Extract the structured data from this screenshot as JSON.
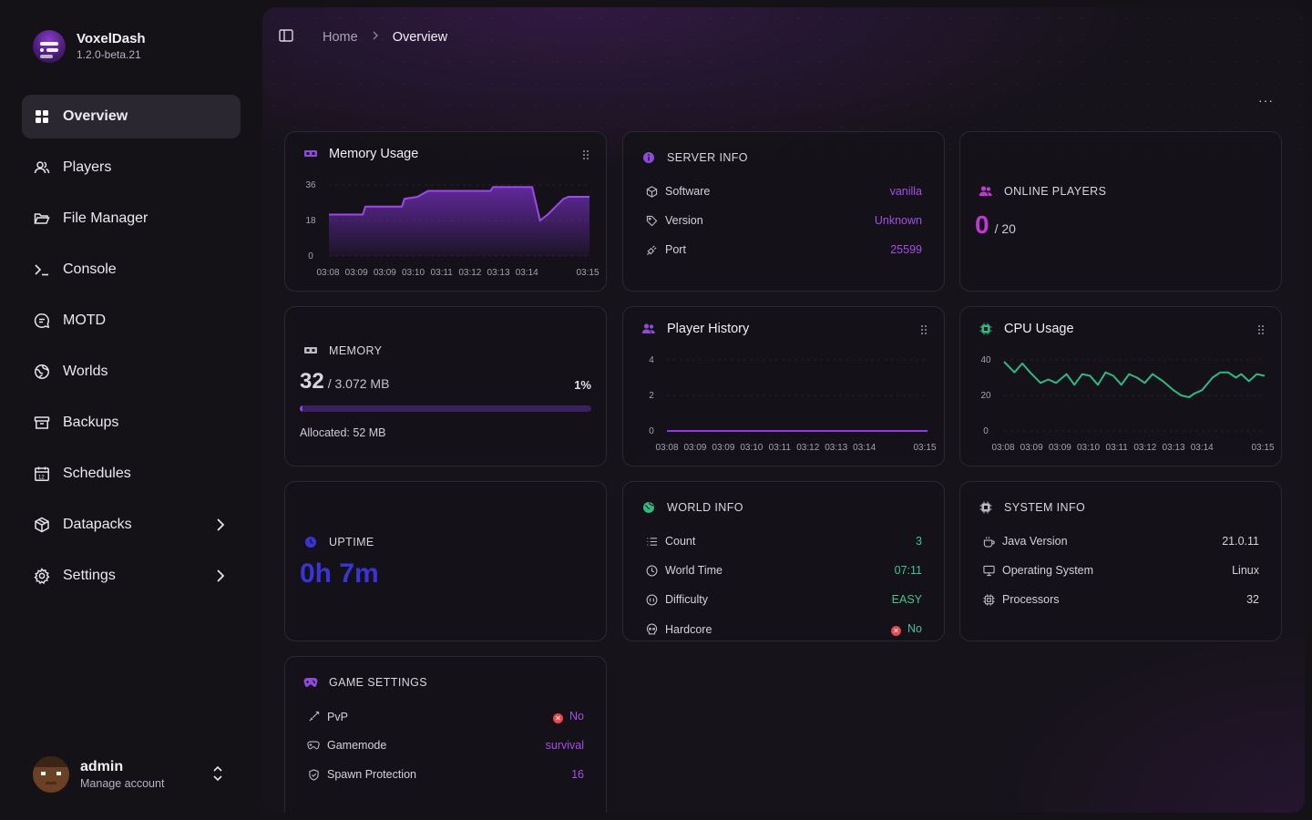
{
  "brand": {
    "name": "VoxelDash",
    "version": "1.2.0-beta.21"
  },
  "nav": [
    {
      "label": "Overview",
      "icon": "grid-icon",
      "active": true
    },
    {
      "label": "Players",
      "icon": "users-icon"
    },
    {
      "label": "File Manager",
      "icon": "folder-icon"
    },
    {
      "label": "Console",
      "icon": "terminal-icon"
    },
    {
      "label": "MOTD",
      "icon": "message-icon"
    },
    {
      "label": "Worlds",
      "icon": "globe-icon"
    },
    {
      "label": "Backups",
      "icon": "archive-icon"
    },
    {
      "label": "Schedules",
      "icon": "calendar-icon"
    },
    {
      "label": "Datapacks",
      "icon": "package-icon",
      "expandable": true
    },
    {
      "label": "Settings",
      "icon": "gear-icon",
      "expandable": true
    }
  ],
  "account": {
    "name": "admin",
    "subtitle": "Manage account"
  },
  "breadcrumb": {
    "home": "Home",
    "current": "Overview"
  },
  "more_label": "···",
  "memory_usage": {
    "title": "Memory Usage",
    "chart_data": {
      "type": "area",
      "title": "Memory Usage",
      "x": [
        "03:08",
        "03:09",
        "03:09",
        "03:10",
        "03:11",
        "03:12",
        "03:13",
        "03:14",
        "03:15"
      ],
      "y_ticks": [
        0,
        18,
        36
      ],
      "ylim": [
        0,
        36
      ],
      "color": "#7b2fc7",
      "points": [
        [
          0,
          21
        ],
        [
          0.13,
          21
        ],
        [
          0.14,
          25
        ],
        [
          0.28,
          25
        ],
        [
          0.29,
          29
        ],
        [
          0.34,
          30
        ],
        [
          0.38,
          33
        ],
        [
          0.39,
          33
        ],
        [
          0.62,
          33
        ],
        [
          0.63,
          35
        ],
        [
          0.78,
          35
        ],
        [
          0.81,
          18
        ],
        [
          0.84,
          21
        ],
        [
          0.9,
          29
        ],
        [
          0.92,
          30
        ],
        [
          1,
          30
        ]
      ]
    }
  },
  "server_info": {
    "title": "SERVER INFO",
    "rows": [
      {
        "label": "Software",
        "value": "vanilla",
        "icon": "cube-icon"
      },
      {
        "label": "Version",
        "value": "Unknown",
        "icon": "tag-icon"
      },
      {
        "label": "Port",
        "value": "25599",
        "icon": "plug-icon"
      }
    ]
  },
  "online_players": {
    "title": "ONLINE PLAYERS",
    "current": "0",
    "max": "/ 20"
  },
  "memory": {
    "title": "MEMORY",
    "used": "32",
    "total": "/ 3.072 MB",
    "percent_label": "1%",
    "percent": 0.01,
    "allocated": "Allocated: 52 MB"
  },
  "player_history": {
    "title": "Player History",
    "chart_data": {
      "type": "line",
      "title": "Player History",
      "x": [
        "03:08",
        "03:09",
        "03:09",
        "03:10",
        "03:11",
        "03:12",
        "03:13",
        "03:14",
        "03:15"
      ],
      "y_ticks": [
        0,
        2,
        4
      ],
      "ylim": [
        0,
        4
      ],
      "color": "#8e3be0",
      "points": [
        [
          0,
          0
        ],
        [
          1,
          0
        ]
      ]
    }
  },
  "cpu_usage": {
    "title": "CPU Usage",
    "chart_data": {
      "type": "line",
      "title": "CPU Usage",
      "x": [
        "03:08",
        "03:09",
        "03:09",
        "03:10",
        "03:11",
        "03:12",
        "03:13",
        "03:14",
        "03:15"
      ],
      "y_ticks": [
        0,
        20,
        40
      ],
      "ylim": [
        0,
        40
      ],
      "color": "#2fb880",
      "points": [
        [
          0,
          39
        ],
        [
          0.04,
          33
        ],
        [
          0.07,
          38
        ],
        [
          0.1,
          33
        ],
        [
          0.14,
          27
        ],
        [
          0.17,
          29
        ],
        [
          0.2,
          27
        ],
        [
          0.24,
          32
        ],
        [
          0.27,
          26
        ],
        [
          0.3,
          32
        ],
        [
          0.33,
          31
        ],
        [
          0.36,
          26
        ],
        [
          0.39,
          33
        ],
        [
          0.42,
          31
        ],
        [
          0.45,
          26
        ],
        [
          0.48,
          32
        ],
        [
          0.51,
          30
        ],
        [
          0.54,
          27
        ],
        [
          0.57,
          32
        ],
        [
          0.61,
          28
        ],
        [
          0.65,
          23
        ],
        [
          0.68,
          20
        ],
        [
          0.71,
          19
        ],
        [
          0.73,
          21
        ],
        [
          0.76,
          23
        ],
        [
          0.8,
          30
        ],
        [
          0.83,
          33
        ],
        [
          0.86,
          33
        ],
        [
          0.89,
          30
        ],
        [
          0.91,
          32
        ],
        [
          0.94,
          28
        ],
        [
          0.97,
          32
        ],
        [
          1,
          31
        ]
      ]
    }
  },
  "uptime": {
    "title": "UPTIME",
    "value": "0h 7m"
  },
  "world_info": {
    "title": "WORLD INFO",
    "rows": [
      {
        "label": "Count",
        "value": "3",
        "icon": "list-icon"
      },
      {
        "label": "World Time",
        "value": "07:11",
        "icon": "clock-icon"
      },
      {
        "label": "Difficulty",
        "value": "EASY",
        "icon": "gauge-icon"
      },
      {
        "label": "Hardcore",
        "value": "No",
        "icon": "skull-icon"
      }
    ]
  },
  "system_info": {
    "title": "SYSTEM INFO",
    "rows": [
      {
        "label": "Java Version",
        "value": "21.0.11",
        "icon": "coffee-icon"
      },
      {
        "label": "Operating System",
        "value": "Linux",
        "icon": "monitor-icon"
      },
      {
        "label": "Processors",
        "value": "32",
        "icon": "chip-icon"
      }
    ]
  },
  "game_settings": {
    "title": "GAME SETTINGS",
    "rows": [
      {
        "label": "PvP",
        "value": "No",
        "icon": "sword-icon"
      },
      {
        "label": "Gamemode",
        "value": "survival",
        "icon": "gamepad-icon"
      },
      {
        "label": "Spawn Protection",
        "value": "16",
        "icon": "shield-icon"
      }
    ]
  },
  "colors": {
    "accent": "#a64ce8",
    "green": "#3fc58d",
    "danger": "#e5484d",
    "uptime": "#3a34d6",
    "players": "#c238d6"
  }
}
